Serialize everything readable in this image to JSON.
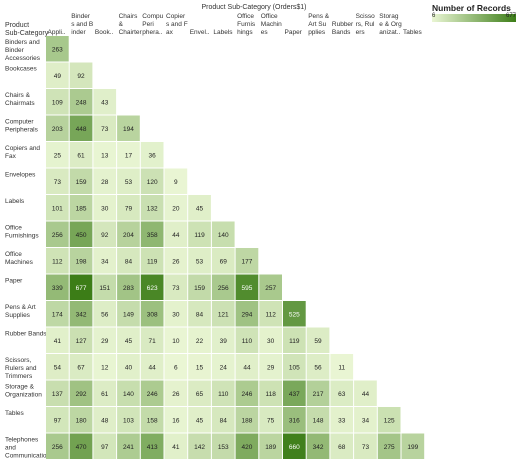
{
  "chart_data": {
    "type": "heatmap",
    "column_header": "Product Sub-Category (Orders$1)",
    "row_header": "Product Sub-Category",
    "columns": [
      "Appli..",
      "Binder s and B inder ..",
      "Book..",
      "Chairs & Chairter mats",
      "Compu Peri phera..",
      "Copier s and F ax",
      "Envel..",
      "Labels",
      "Office Furnis hings",
      "Office Machin es",
      "Paper",
      "Pens & Art Su pplies",
      "Rubber Bands",
      "Scisso rs, Rul ers an..",
      "Storag e & Org anizat..",
      "Tables"
    ],
    "rows": [
      {
        "label": "Binders and Binder Accessories",
        "values": [
          263
        ]
      },
      {
        "label": "Bookcases",
        "values": [
          49,
          92
        ]
      },
      {
        "label": "Chairs & Chairmats",
        "values": [
          109,
          248,
          43
        ]
      },
      {
        "label": "Computer Peripherals",
        "values": [
          203,
          448,
          73,
          194
        ]
      },
      {
        "label": "Copiers and Fax",
        "values": [
          25,
          61,
          13,
          17,
          36
        ]
      },
      {
        "label": "Envelopes",
        "values": [
          73,
          159,
          28,
          53,
          120,
          9
        ]
      },
      {
        "label": "Labels",
        "values": [
          101,
          185,
          30,
          79,
          132,
          20,
          45
        ]
      },
      {
        "label": "Office Furnishings",
        "values": [
          256,
          450,
          92,
          204,
          358,
          44,
          119,
          140
        ]
      },
      {
        "label": "Office Machines",
        "values": [
          112,
          198,
          34,
          84,
          119,
          26,
          53,
          69,
          177
        ]
      },
      {
        "label": "Paper",
        "values": [
          339,
          677,
          151,
          283,
          623,
          73,
          159,
          256,
          595,
          257
        ]
      },
      {
        "label": "Pens & Art Supplies",
        "values": [
          174,
          342,
          56,
          149,
          308,
          30,
          84,
          121,
          294,
          112,
          525
        ]
      },
      {
        "label": "Rubber Bands",
        "values": [
          41,
          127,
          29,
          45,
          71,
          10,
          22,
          39,
          110,
          30,
          119,
          59
        ]
      },
      {
        "label": "Scissors, Rulers and Trimmers",
        "values": [
          54,
          67,
          12,
          40,
          44,
          6,
          15,
          24,
          44,
          29,
          105,
          56,
          11
        ]
      },
      {
        "label": "Storage & Organization",
        "values": [
          137,
          292,
          61,
          140,
          246,
          26,
          65,
          110,
          246,
          118,
          437,
          217,
          63,
          44
        ]
      },
      {
        "label": "Tables",
        "values": [
          97,
          180,
          48,
          103,
          158,
          16,
          45,
          84,
          188,
          75,
          316,
          148,
          33,
          34,
          125
        ]
      },
      {
        "label": "Telephones and Communication",
        "values": [
          256,
          470,
          97,
          241,
          413,
          41,
          142,
          153,
          420,
          189,
          660,
          342,
          68,
          73,
          275,
          199
        ]
      }
    ],
    "legend": {
      "title": "Number of Records",
      "min": 6,
      "max": 677,
      "color_low": "#eaf6d4",
      "color_high": "#3c7d17",
      "placement": "top-right"
    }
  }
}
